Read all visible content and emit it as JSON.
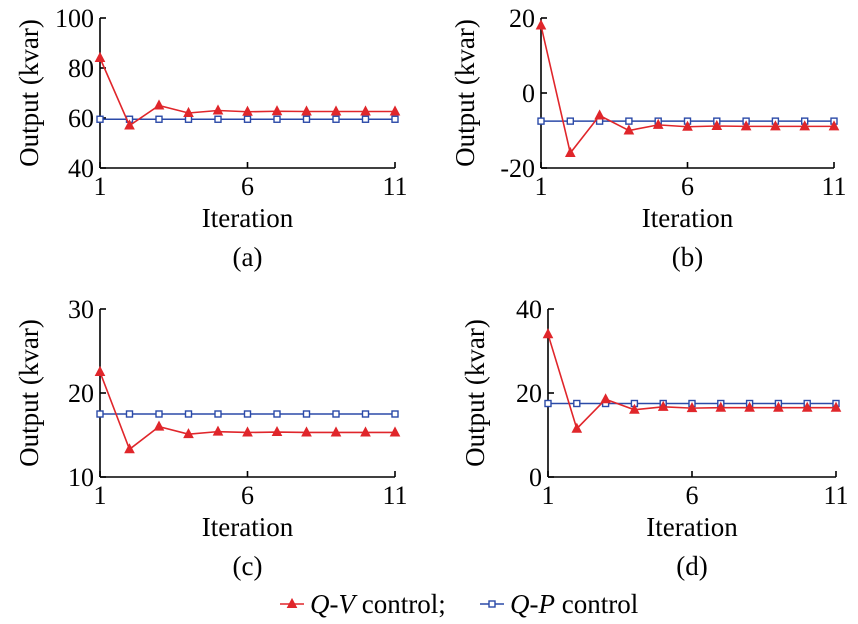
{
  "colors": {
    "qv": "#e0262b",
    "qp": "#2b4aa8",
    "axis": "#000000"
  },
  "legend": {
    "entries": [
      {
        "series": "qv",
        "q": "Q",
        "dash": "-",
        "v": "V",
        "rest": " control;"
      },
      {
        "series": "qp",
        "q": "Q",
        "dash": "-",
        "v": "P",
        "rest": " control"
      }
    ]
  },
  "chart_data": [
    {
      "type": "line",
      "caption": "(a)",
      "xlabel": "Iteration",
      "ylabel": "Output (kvar)",
      "xlim": [
        1,
        11
      ],
      "ylim": [
        40,
        100
      ],
      "xticks": [
        1,
        6,
        11
      ],
      "yticks": [
        40,
        60,
        80,
        100
      ],
      "x": [
        1,
        2,
        3,
        4,
        5,
        6,
        7,
        8,
        9,
        10,
        11
      ],
      "series": [
        {
          "key": "qv",
          "values": [
            84,
            57,
            65,
            62,
            63,
            62.5,
            62.7,
            62.6,
            62.6,
            62.6,
            62.6
          ]
        },
        {
          "key": "qp",
          "values": [
            59.5,
            59.5,
            59.5,
            59.5,
            59.5,
            59.5,
            59.5,
            59.5,
            59.5,
            59.5,
            59.5
          ]
        }
      ]
    },
    {
      "type": "line",
      "caption": "(b)",
      "xlabel": "Iteration",
      "ylabel": "Output (kvar)",
      "xlim": [
        1,
        11
      ],
      "ylim": [
        -20,
        20
      ],
      "xticks": [
        1,
        6,
        11
      ],
      "yticks": [
        -20,
        0,
        20
      ],
      "x": [
        1,
        2,
        3,
        4,
        5,
        6,
        7,
        8,
        9,
        10,
        11
      ],
      "series": [
        {
          "key": "qv",
          "values": [
            18,
            -16,
            -6,
            -10,
            -8.5,
            -9,
            -8.8,
            -8.9,
            -8.9,
            -8.9,
            -8.9
          ]
        },
        {
          "key": "qp",
          "values": [
            -7.5,
            -7.5,
            -7.5,
            -7.5,
            -7.5,
            -7.5,
            -7.5,
            -7.5,
            -7.5,
            -7.5,
            -7.5
          ]
        }
      ]
    },
    {
      "type": "line",
      "caption": "(c)",
      "xlabel": "Iteration",
      "ylabel": "Output (kvar)",
      "xlim": [
        1,
        11
      ],
      "ylim": [
        10,
        30
      ],
      "xticks": [
        1,
        6,
        11
      ],
      "yticks": [
        10,
        20,
        30
      ],
      "x": [
        1,
        2,
        3,
        4,
        5,
        6,
        7,
        8,
        9,
        10,
        11
      ],
      "series": [
        {
          "key": "qv",
          "values": [
            22.5,
            13.3,
            16,
            15.1,
            15.4,
            15.3,
            15.35,
            15.3,
            15.3,
            15.3,
            15.3
          ]
        },
        {
          "key": "qp",
          "values": [
            17.5,
            17.5,
            17.5,
            17.5,
            17.5,
            17.5,
            17.5,
            17.5,
            17.5,
            17.5,
            17.5
          ]
        }
      ]
    },
    {
      "type": "line",
      "caption": "(d)",
      "xlabel": "Iteration",
      "ylabel": "Output (kvar)",
      "xlim": [
        1,
        11
      ],
      "ylim": [
        0,
        40
      ],
      "xticks": [
        1,
        6,
        11
      ],
      "yticks": [
        0,
        20,
        40
      ],
      "x": [
        1,
        2,
        3,
        4,
        5,
        6,
        7,
        8,
        9,
        10,
        11
      ],
      "series": [
        {
          "key": "qv",
          "values": [
            34,
            11.5,
            18.5,
            16,
            16.7,
            16.4,
            16.5,
            16.5,
            16.5,
            16.5,
            16.5
          ]
        },
        {
          "key": "qp",
          "values": [
            17.5,
            17.5,
            17.5,
            17.5,
            17.5,
            17.5,
            17.5,
            17.5,
            17.5,
            17.5,
            17.5
          ]
        }
      ]
    }
  ]
}
